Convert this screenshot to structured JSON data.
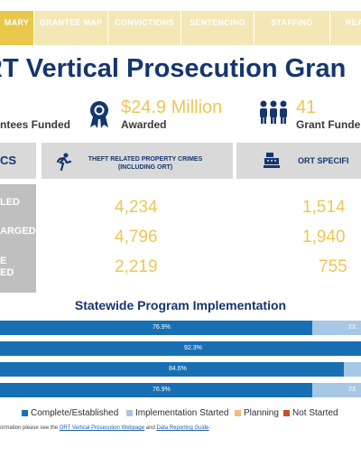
{
  "tabs": [
    "MARY",
    "GRANTEE MAP",
    "CONVICTIONS",
    "SENTENCING",
    "STAFFING",
    "REA"
  ],
  "title": "RT Vertical Prosecution Gran",
  "stats": {
    "grantees_label": "ntees Funded",
    "awarded_value": "$24.9 Million",
    "awarded_label": "Awarded",
    "grant_value": "41",
    "grant_label": "Grant Funde"
  },
  "headers": {
    "left_partial": "CS",
    "theft": "THEFT RELATED PROPERTY CRIMES (INCLUDING ORT)",
    "ort": "ORT SPECIFI"
  },
  "rows": [
    {
      "label": "LED",
      "theft": "4,234",
      "ort": "1,514"
    },
    {
      "label": "ARGED",
      "theft": "4,796",
      "ort": "1,940"
    },
    {
      "label": "E\nED",
      "theft": "2,219",
      "ort": "755"
    }
  ],
  "implementation": {
    "title": "Statewide Program Implementation",
    "bars": [
      {
        "complete": 76.9,
        "started": 23.1,
        "label": "76.9%",
        "rest_label": "23."
      },
      {
        "complete": 92.3,
        "started": 7.7,
        "label": "92.3%",
        "rest_label": ""
      },
      {
        "complete": 84.6,
        "started": 15.4,
        "label": "84.6%",
        "rest_label": ""
      },
      {
        "complete": 76.9,
        "started": 23.1,
        "label": "76.9%",
        "rest_label": "23."
      }
    ],
    "legend": [
      {
        "label": "Complete/Established",
        "color": "#1870b3"
      },
      {
        "label": "Implementation Started",
        "color": "#a6c8e6"
      },
      {
        "label": "Planning",
        "color": "#f5b97a"
      },
      {
        "label": "Not Started",
        "color": "#c8501c"
      }
    ]
  },
  "footer": {
    "prefix": "ormation please see the ",
    "link1": "ORT Vertical Prosecution Webpage",
    "mid": " and ",
    "link2": "Data Reporting Guide",
    "suffix": "."
  }
}
